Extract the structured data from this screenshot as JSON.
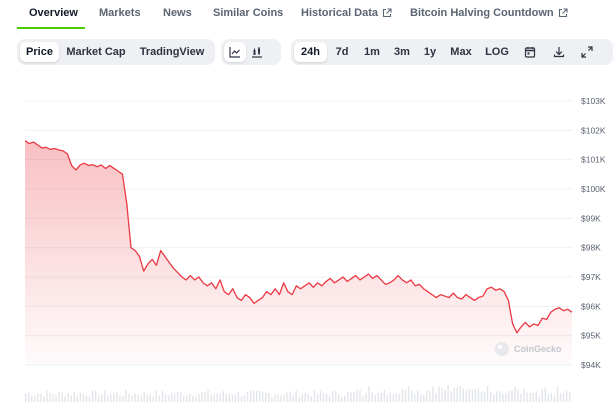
{
  "nav": {
    "tabs": [
      {
        "label": "Overview",
        "external": false
      },
      {
        "label": "Markets",
        "external": false
      },
      {
        "label": "News",
        "external": false
      },
      {
        "label": "Similar Coins",
        "external": false
      },
      {
        "label": "Historical Data",
        "external": true
      },
      {
        "label": "Bitcoin Halving Countdown",
        "external": true
      }
    ],
    "active_index": 0,
    "accent_color": "#4bcc00"
  },
  "controls": {
    "metric_tabs": [
      "Price",
      "Market Cap",
      "TradingView"
    ],
    "metric_active": "Price",
    "chart_style_icons": [
      "line-chart-icon",
      "candlestick-icon"
    ],
    "chart_style_active": "line-chart-icon",
    "ranges": [
      "24h",
      "7d",
      "1m",
      "3m",
      "1y",
      "Max",
      "LOG"
    ],
    "range_active": "24h",
    "tool_icons": [
      "calendar-icon",
      "download-icon",
      "expand-icon"
    ]
  },
  "watermark": "CoinGecko",
  "chart_data": {
    "type": "area",
    "y_axis_position": "right",
    "ylim": [
      94000,
      103000
    ],
    "yticks": [
      94000,
      95000,
      96000,
      97000,
      98000,
      99000,
      100000,
      101000,
      102000,
      103000
    ],
    "ytick_labels": [
      "$94K",
      "$95K",
      "$96K",
      "$97K",
      "$98K",
      "$99K",
      "$100K",
      "$101K",
      "$102K",
      "$103K"
    ],
    "line_color": "#ea3943",
    "grid": true,
    "x_ticks_visible": false,
    "volume_bars": true,
    "series": [
      {
        "values": [
          101650,
          101550,
          101600,
          101500,
          101400,
          101420,
          101350,
          101380,
          101330,
          101300,
          101200,
          100800,
          100650,
          100820,
          100880,
          100800,
          100830,
          100760,
          100820,
          100700,
          100800,
          100700,
          100600,
          100500,
          99500,
          98000,
          97900,
          97700,
          97200,
          97450,
          97600,
          97400,
          97900,
          97700,
          97500,
          97300,
          97150,
          97000,
          96900,
          97050,
          96900,
          97000,
          96800,
          96700,
          96800,
          96600,
          96900,
          96500,
          96400,
          96600,
          96300,
          96200,
          96400,
          96300,
          96100,
          96200,
          96300,
          96500,
          96400,
          96600,
          96400,
          96800,
          96500,
          96400,
          96700,
          96600,
          96700,
          96800,
          96650,
          96800,
          96700,
          96850,
          96950,
          96800,
          96900,
          97000,
          96850,
          96950,
          97050,
          96900,
          97000,
          97100,
          96950,
          97050,
          96900,
          96750,
          96800,
          96900,
          97050,
          96900,
          96800,
          96900,
          96700,
          96750,
          96600,
          96500,
          96400,
          96300,
          96400,
          96350,
          96300,
          96450,
          96300,
          96250,
          96400,
          96300,
          96200,
          96300,
          96350,
          96600,
          96650,
          96550,
          96600,
          96500,
          96200,
          95400,
          95100,
          95300,
          95450,
          95300,
          95400,
          95350,
          95600,
          95550,
          95800,
          95900,
          95950,
          95850,
          95900,
          95800
        ]
      }
    ]
  }
}
